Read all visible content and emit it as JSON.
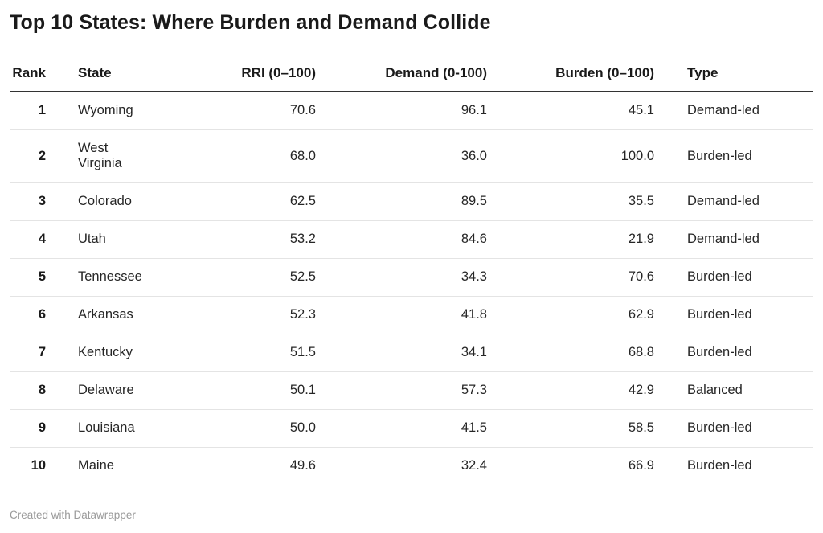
{
  "title": "Top 10 States: Where Burden and Demand Collide",
  "table": {
    "columns": {
      "rank": {
        "label": "Rank"
      },
      "state": {
        "label": "State"
      },
      "rri": {
        "label": "RRI (0–100)"
      },
      "demand": {
        "label": "Demand (0-100)"
      },
      "burden": {
        "label": "Burden (0–100)"
      },
      "type": {
        "label": "Type"
      }
    },
    "rows": [
      {
        "rank": "1",
        "state": "Wyoming",
        "rri": "70.6",
        "demand": "96.1",
        "burden": "45.1",
        "type": "Demand-led"
      },
      {
        "rank": "2",
        "state": "West\nVirginia",
        "rri": "68.0",
        "demand": "36.0",
        "burden": "100.0",
        "type": "Burden-led"
      },
      {
        "rank": "3",
        "state": "Colorado",
        "rri": "62.5",
        "demand": "89.5",
        "burden": "35.5",
        "type": "Demand-led"
      },
      {
        "rank": "4",
        "state": "Utah",
        "rri": "53.2",
        "demand": "84.6",
        "burden": "21.9",
        "type": "Demand-led"
      },
      {
        "rank": "5",
        "state": "Tennessee",
        "rri": "52.5",
        "demand": "34.3",
        "burden": "70.6",
        "type": "Burden-led"
      },
      {
        "rank": "6",
        "state": "Arkansas",
        "rri": "52.3",
        "demand": "41.8",
        "burden": "62.9",
        "type": "Burden-led"
      },
      {
        "rank": "7",
        "state": "Kentucky",
        "rri": "51.5",
        "demand": "34.1",
        "burden": "68.8",
        "type": "Burden-led"
      },
      {
        "rank": "8",
        "state": "Delaware",
        "rri": "50.1",
        "demand": "57.3",
        "burden": "42.9",
        "type": "Balanced"
      },
      {
        "rank": "9",
        "state": "Louisiana",
        "rri": "50.0",
        "demand": "41.5",
        "burden": "58.5",
        "type": "Burden-led"
      },
      {
        "rank": "10",
        "state": "Maine",
        "rri": "49.6",
        "demand": "32.4",
        "burden": "66.9",
        "type": "Burden-led"
      }
    ]
  },
  "footer": {
    "attribution": "Created with Datawrapper"
  },
  "colors": {
    "title_text": "#1a1a1a",
    "body_text": "#262626",
    "header_rule": "#333333",
    "row_rule": "#e4e4e4",
    "footer_text": "#9a9a9a",
    "background": "#ffffff"
  },
  "chart_data": {
    "type": "table",
    "title": "Top 10 States: Where Burden and Demand Collide",
    "columns": [
      "Rank",
      "State",
      "RRI (0–100)",
      "Demand (0-100)",
      "Burden (0–100)",
      "Type"
    ],
    "rows": [
      [
        1,
        "Wyoming",
        70.6,
        96.1,
        45.1,
        "Demand-led"
      ],
      [
        2,
        "West Virginia",
        68.0,
        36.0,
        100.0,
        "Burden-led"
      ],
      [
        3,
        "Colorado",
        62.5,
        89.5,
        35.5,
        "Demand-led"
      ],
      [
        4,
        "Utah",
        53.2,
        84.6,
        21.9,
        "Demand-led"
      ],
      [
        5,
        "Tennessee",
        52.5,
        34.3,
        70.6,
        "Burden-led"
      ],
      [
        6,
        "Arkansas",
        52.3,
        41.8,
        62.9,
        "Burden-led"
      ],
      [
        7,
        "Kentucky",
        51.5,
        34.1,
        68.8,
        "Burden-led"
      ],
      [
        8,
        "Delaware",
        50.1,
        57.3,
        42.9,
        "Balanced"
      ],
      [
        9,
        "Louisiana",
        50.0,
        41.5,
        58.5,
        "Burden-led"
      ],
      [
        10,
        "Maine",
        49.6,
        32.4,
        66.9,
        "Burden-led"
      ]
    ],
    "value_ranges": {
      "rri": [
        0,
        100
      ],
      "demand": [
        0,
        100
      ],
      "burden": [
        0,
        100
      ]
    },
    "layout_hints": {
      "numeric_columns_right_aligned": true,
      "grid": "horizontal-row-rules"
    }
  }
}
